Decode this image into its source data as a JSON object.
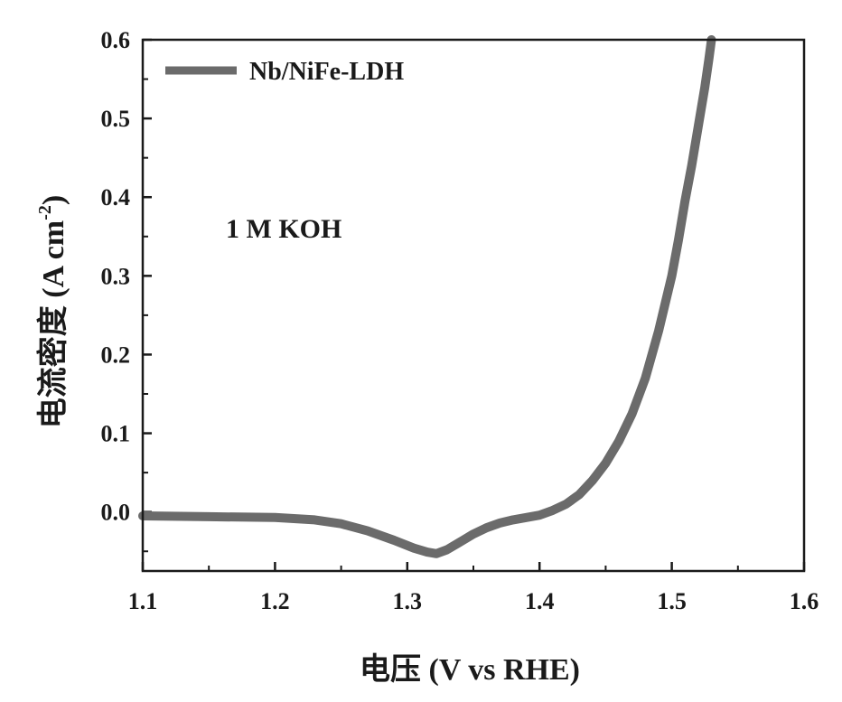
{
  "chart_data": {
    "type": "line",
    "title": "",
    "xlabel": "电压 (V vs RHE)",
    "ylabel_main": "电流密度 (A cm",
    "ylabel_sup": "-2",
    "ylabel_close": ")",
    "xlim": [
      1.1,
      1.6
    ],
    "ylim": [
      -0.075,
      0.6
    ],
    "xticks": [
      1.1,
      1.2,
      1.3,
      1.4,
      1.5,
      1.6
    ],
    "xtick_labels": [
      "1.1",
      "1.2",
      "1.3",
      "1.4",
      "1.5",
      "1.6"
    ],
    "yticks": [
      0.0,
      0.1,
      0.2,
      0.3,
      0.4,
      0.5,
      0.6
    ],
    "ytick_labels": [
      "0.0",
      "0.1",
      "0.2",
      "0.3",
      "0.4",
      "0.5",
      "0.6"
    ],
    "grid": false,
    "legend_position": "top-left",
    "annotation": "1 M KOH",
    "series": [
      {
        "name": "Nb/NiFe-LDH",
        "color": "#6b6b6b",
        "x": [
          1.1,
          1.15,
          1.2,
          1.23,
          1.25,
          1.27,
          1.29,
          1.305,
          1.315,
          1.322,
          1.33,
          1.34,
          1.35,
          1.36,
          1.37,
          1.38,
          1.39,
          1.4,
          1.41,
          1.42,
          1.43,
          1.44,
          1.45,
          1.46,
          1.47,
          1.48,
          1.49,
          1.5,
          1.505,
          1.51,
          1.515,
          1.52,
          1.525,
          1.528,
          1.53
        ],
        "y": [
          -0.005,
          -0.006,
          -0.007,
          -0.01,
          -0.015,
          -0.024,
          -0.036,
          -0.046,
          -0.051,
          -0.053,
          -0.048,
          -0.038,
          -0.028,
          -0.02,
          -0.014,
          -0.01,
          -0.007,
          -0.004,
          0.002,
          0.01,
          0.022,
          0.04,
          0.062,
          0.09,
          0.125,
          0.17,
          0.23,
          0.3,
          0.345,
          0.395,
          0.44,
          0.49,
          0.54,
          0.575,
          0.6
        ]
      }
    ]
  }
}
